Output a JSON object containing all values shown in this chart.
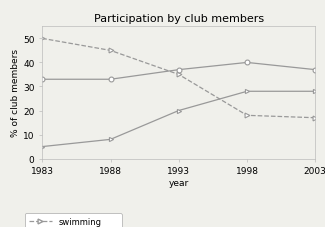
{
  "title": "Participation by club members",
  "xlabel": "year",
  "ylabel": "% of club members",
  "years": [
    1983,
    1988,
    1993,
    1998,
    2003
  ],
  "swimming": [
    50,
    45,
    35,
    18,
    17
  ],
  "team_sports": [
    33,
    33,
    37,
    40,
    37
  ],
  "gym_activities": [
    5,
    8,
    20,
    28,
    28
  ],
  "ylim": [
    0,
    55
  ],
  "xlim": [
    1983,
    2003
  ],
  "xticks": [
    1983,
    1988,
    1993,
    1998,
    2003
  ],
  "yticks": [
    0,
    10,
    20,
    30,
    40,
    50
  ],
  "line_color": "#999999",
  "bg_color": "#f0f0eb",
  "title_fontsize": 8,
  "axis_fontsize": 6.5,
  "tick_fontsize": 6.5,
  "legend_fontsize": 6
}
